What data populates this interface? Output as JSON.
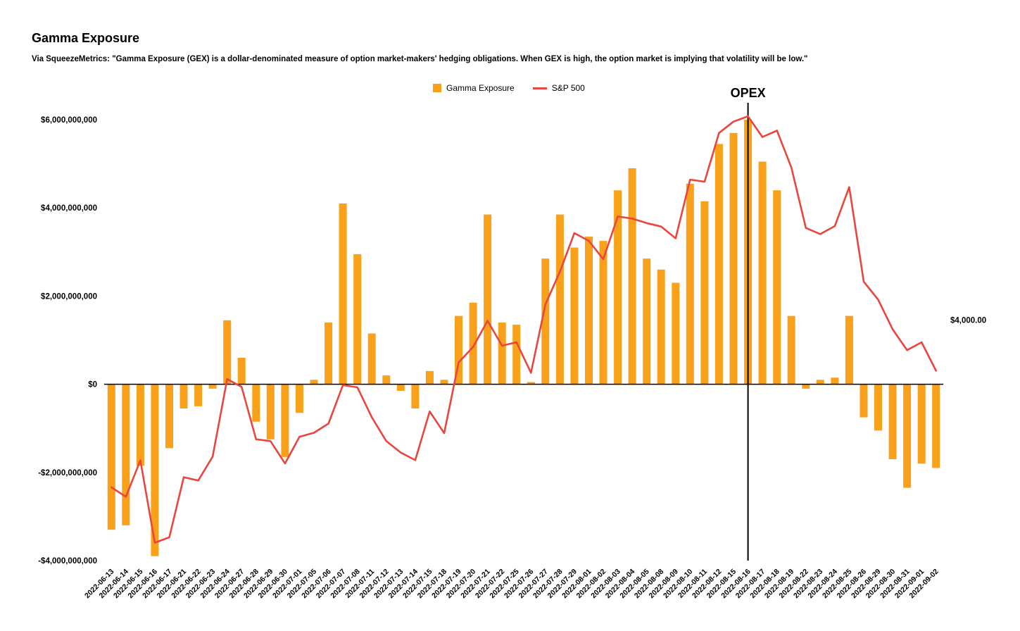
{
  "page": {
    "title": "Gamma Exposure",
    "subtitle": "Via SqueezeMetrics: \"Gamma Exposure (GEX) is a dollar-denominated measure of option market-makers' hedging obligations. When GEX is high, the option market is implying that volatility will be low.\""
  },
  "chart_data": {
    "type": "bar",
    "title": "Gamma Exposure",
    "grid": false,
    "legend_position": "top-center",
    "categories": [
      "2022-06-13",
      "2022-06-14",
      "2022-06-15",
      "2022-06-16",
      "2022-06-17",
      "2022-06-21",
      "2022-06-22",
      "2022-06-23",
      "2022-06-24",
      "2022-06-27",
      "2022-06-28",
      "2022-06-29",
      "2022-06-30",
      "2022-07-01",
      "2022-07-05",
      "2022-07-06",
      "2022-07-07",
      "2022-07-08",
      "2022-07-11",
      "2022-07-12",
      "2022-07-13",
      "2022-07-14",
      "2022-07-15",
      "2022-07-18",
      "2022-07-19",
      "2022-07-20",
      "2022-07-21",
      "2022-07-22",
      "2022-07-25",
      "2022-07-26",
      "2022-07-27",
      "2022-07-28",
      "2022-07-29",
      "2022-08-01",
      "2022-08-02",
      "2022-08-03",
      "2022-08-04",
      "2022-08-05",
      "2022-08-08",
      "2022-08-09",
      "2022-08-10",
      "2022-08-11",
      "2022-08-12",
      "2022-08-15",
      "2022-08-16",
      "2022-08-17",
      "2022-08-18",
      "2022-08-19",
      "2022-08-22",
      "2022-08-23",
      "2022-08-24",
      "2022-08-25",
      "2022-08-26",
      "2022-08-29",
      "2022-08-30",
      "2022-08-31",
      "2022-09-01",
      "2022-09-02"
    ],
    "series": [
      {
        "name": "Gamma Exposure",
        "type": "bar",
        "axis": "left",
        "color": "#F9A11B",
        "values": [
          -3300000000,
          -3200000000,
          -1850000000,
          -3900000000,
          -1450000000,
          -550000000,
          -500000000,
          -100000000,
          1450000000,
          600000000,
          -850000000,
          -1250000000,
          -1650000000,
          -650000000,
          100000000,
          1400000000,
          4100000000,
          2950000000,
          1150000000,
          200000000,
          -150000000,
          -550000000,
          300000000,
          100000000,
          1550000000,
          1850000000,
          3850000000,
          1400000000,
          1350000000,
          50000000,
          2850000000,
          3850000000,
          3100000000,
          3350000000,
          3250000000,
          4400000000,
          4900000000,
          2850000000,
          2600000000,
          2300000000,
          4550000000,
          4150000000,
          5450000000,
          5700000000,
          6000000000,
          5050000000,
          4400000000,
          1550000000,
          -100000000,
          100000000,
          150000000,
          1550000000,
          -750000000,
          -1050000000,
          -1700000000,
          -2350000000,
          -1800000000,
          -1900000000
        ]
      },
      {
        "name": "S&P 500",
        "type": "line",
        "axis": "right",
        "color": "#E8463F",
        "values": [
          3749.63,
          3735.48,
          3789.99,
          3666.77,
          3674.84,
          3764.79,
          3759.89,
          3795.73,
          3911.74,
          3900.11,
          3821.55,
          3818.83,
          3785.38,
          3825.33,
          3831.39,
          3845.08,
          3902.62,
          3899.38,
          3854.43,
          3818.8,
          3801.78,
          3790.38,
          3863.16,
          3830.85,
          3936.69,
          3959.9,
          3998.95,
          3961.63,
          3966.84,
          3921.05,
          4023.61,
          4072.43,
          4130.29,
          4118.63,
          4091.19,
          4155.17,
          4151.94,
          4145.19,
          4140.06,
          4122.47,
          4210.24,
          4207.27,
          4280.15,
          4297.14,
          4305.2,
          4274.04,
          4283.74,
          4228.48,
          4137.99,
          4128.73,
          4140.77,
          4199.12,
          4057.66,
          4030.61,
          3986.16,
          3955.0,
          3966.85,
          3924.26
        ]
      }
    ],
    "left_axis": {
      "min": -4000000000,
      "max": 6000000000,
      "ticks": [
        {
          "value": 6000000000,
          "label": "$6,000,000,000"
        },
        {
          "value": 4000000000,
          "label": "$4,000,000,000"
        },
        {
          "value": 2000000000,
          "label": "$2,000,000,000"
        },
        {
          "value": 0,
          "label": "$0"
        },
        {
          "value": -2000000000,
          "label": "-$2,000,000,000"
        },
        {
          "value": -4000000000,
          "label": "-$4,000,000,000"
        }
      ]
    },
    "right_axis": {
      "min": 3640,
      "max": 4300,
      "ticks": [
        {
          "value": 4000,
          "label": "$4,000.00"
        }
      ]
    },
    "annotation": {
      "label": "OPEX",
      "date": "2022-08-16"
    }
  }
}
